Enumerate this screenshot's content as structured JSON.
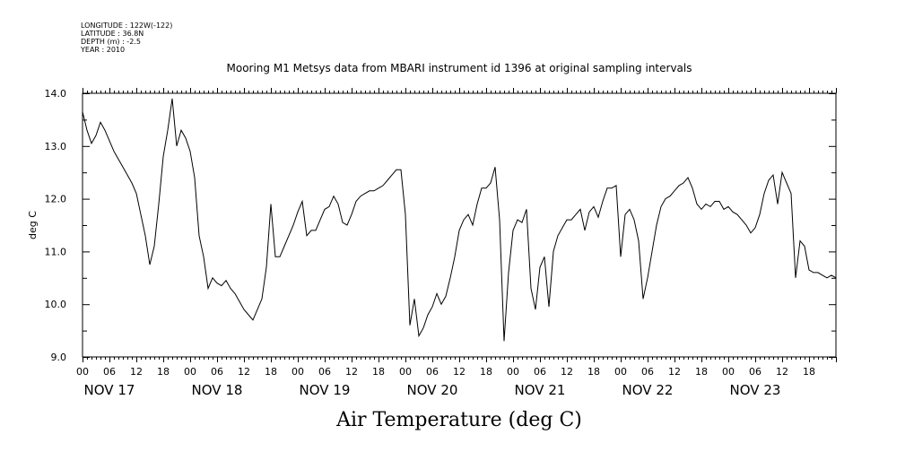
{
  "header": {
    "longitude": "LONGITUDE : 122W(-122)",
    "latitude": "LATITUDE : 36.8N",
    "depth": "DEPTH (m) : -2.5",
    "year": "YEAR : 2010"
  },
  "chart_data": {
    "type": "line",
    "title": "Mooring M1 Metsys data from MBARI instrument id 1396 at original sampling intervals",
    "xlabel": "Air Temperature (deg C)",
    "ylabel": "deg C",
    "ylim": [
      9.0,
      14.0
    ],
    "yticks": [
      "9.0",
      "10.0",
      "11.0",
      "12.0",
      "13.0",
      "14.0"
    ],
    "xlim_hours": [
      0,
      168
    ],
    "hour_ticks": [
      "00",
      "06",
      "12",
      "18",
      "00",
      "06",
      "12",
      "18",
      "00",
      "06",
      "12",
      "18",
      "00",
      "06",
      "12",
      "18",
      "00",
      "06",
      "12",
      "18",
      "00",
      "06",
      "12",
      "18",
      "00",
      "06",
      "12",
      "18"
    ],
    "day_labels": [
      "NOV 17",
      "NOV 18",
      "NOV 19",
      "NOV 20",
      "NOV 21",
      "NOV 22",
      "NOV 23"
    ],
    "grid": false,
    "series": [
      {
        "x": [
          0,
          1,
          2,
          3,
          4,
          5,
          6,
          7,
          8,
          9,
          10,
          11,
          12,
          13,
          14,
          15,
          16,
          17,
          18,
          19,
          20,
          21,
          22,
          23,
          24,
          25,
          26,
          27,
          28,
          29,
          30,
          31,
          32,
          33,
          34,
          35,
          36,
          37,
          38,
          39,
          40,
          41,
          42,
          43,
          44,
          45,
          46,
          47,
          48,
          49,
          50,
          51,
          52,
          53,
          54,
          55,
          56,
          57,
          58,
          59,
          60,
          61,
          62,
          63,
          64,
          65,
          66,
          67,
          68,
          69,
          70,
          71,
          72,
          73,
          74,
          75,
          76,
          77,
          78,
          79,
          80,
          81,
          82,
          83,
          84,
          85,
          86,
          87,
          88,
          89,
          90,
          91,
          92,
          93,
          94,
          95,
          96,
          97,
          98,
          99,
          100,
          101,
          102,
          103,
          104,
          105,
          106,
          107,
          108,
          109,
          110,
          111,
          112,
          113,
          114,
          115,
          116,
          117,
          118,
          119,
          120,
          121,
          122,
          123,
          124,
          125,
          126,
          127,
          128,
          129,
          130,
          131,
          132,
          133,
          134,
          135,
          136,
          137,
          138,
          139,
          140,
          141,
          142,
          143,
          144,
          145,
          146,
          147,
          148,
          149,
          150,
          151,
          152,
          153,
          154,
          155,
          156,
          157,
          158,
          159,
          160,
          161,
          162,
          163,
          164,
          165,
          166,
          167,
          168
        ],
        "values": [
          13.65,
          13.3,
          13.05,
          13.2,
          13.45,
          13.3,
          13.1,
          12.9,
          12.75,
          12.6,
          12.45,
          12.3,
          12.1,
          11.7,
          11.3,
          10.75,
          11.1,
          11.9,
          12.8,
          13.3,
          13.9,
          13.0,
          13.3,
          13.15,
          12.9,
          12.4,
          11.3,
          10.9,
          10.3,
          10.5,
          10.4,
          10.35,
          10.45,
          10.3,
          10.2,
          10.05,
          9.9,
          9.8,
          9.7,
          9.9,
          10.1,
          10.7,
          11.9,
          10.9,
          10.9,
          11.1,
          11.3,
          11.5,
          11.75,
          11.95,
          11.3,
          11.4,
          11.4,
          11.6,
          11.8,
          11.85,
          12.05,
          11.9,
          11.55,
          11.5,
          11.7,
          11.95,
          12.05,
          12.1,
          12.15,
          12.15,
          12.2,
          12.25,
          12.35,
          12.45,
          12.55,
          12.55,
          11.7,
          9.6,
          10.1,
          9.4,
          9.55,
          9.8,
          9.95,
          10.2,
          10.0,
          10.15,
          10.5,
          10.9,
          11.4,
          11.6,
          11.7,
          11.5,
          11.9,
          12.2,
          12.2,
          12.3,
          12.6,
          11.6,
          9.3,
          10.6,
          11.4,
          11.6,
          11.55,
          11.8,
          10.3,
          9.9,
          10.7,
          10.9,
          9.95,
          11.0,
          11.3,
          11.45,
          11.6,
          11.6,
          11.7,
          11.8,
          11.4,
          11.75,
          11.85,
          11.65,
          11.95,
          12.2,
          12.2,
          12.25,
          10.9,
          11.7,
          11.8,
          11.6,
          11.2,
          10.1,
          10.5,
          11.0,
          11.5,
          11.85,
          12.0,
          12.05,
          12.15,
          12.25,
          12.3,
          12.4,
          12.2,
          11.9,
          11.8,
          11.9,
          11.85,
          11.95,
          11.95,
          11.8,
          11.85,
          11.75,
          11.7,
          11.6,
          11.5,
          11.35,
          11.45,
          11.7,
          12.1,
          12.35,
          12.45,
          11.9,
          12.5,
          12.3,
          12.1,
          10.5,
          11.2,
          11.1,
          10.65,
          10.6,
          10.6,
          10.55,
          10.5,
          10.55,
          10.5
        ]
      }
    ]
  }
}
